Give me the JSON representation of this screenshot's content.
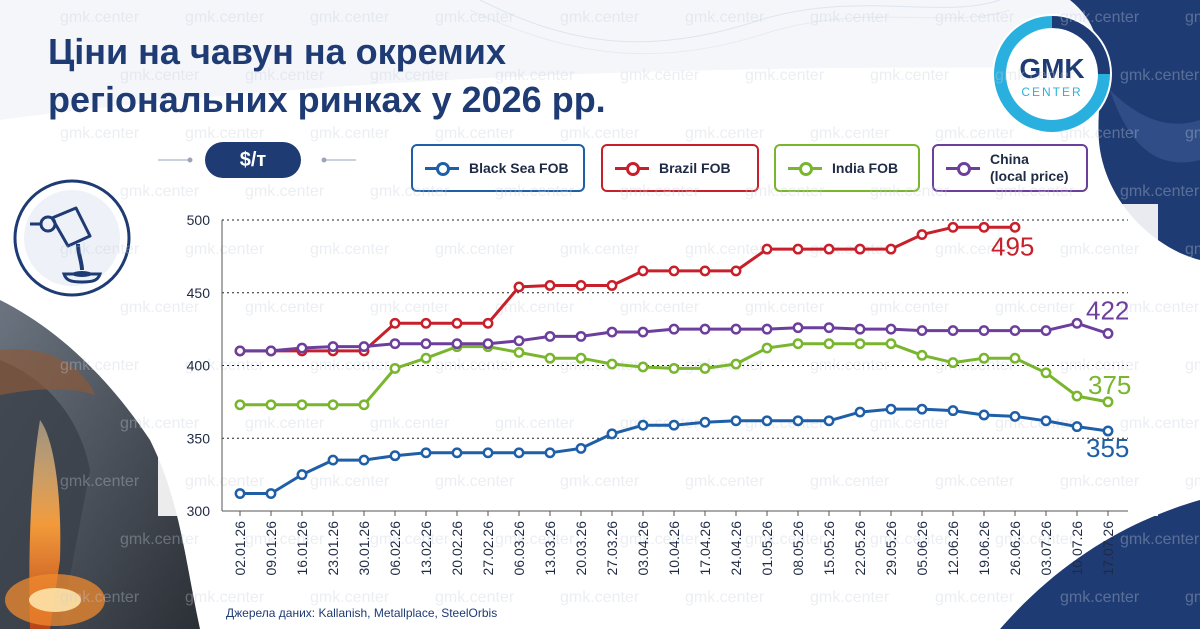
{
  "title": "Ціни на чавун на окремих регіональних ринках у 2026 рр.",
  "unit": "$/т",
  "logo": {
    "line1": "GMK",
    "line2": "CENTER"
  },
  "watermark": "gmk.center",
  "source": "Джерела даних: Kallanish, Metallplace, SteelOrbis",
  "colors": {
    "navy": "#1f3b73",
    "blackSea": "#1f5fa8",
    "brazil": "#c8202a",
    "india": "#7ab52e",
    "china": "#6d3f9c"
  },
  "legend": [
    {
      "label": "Black Sea FOB",
      "color": "#1f5fa8"
    },
    {
      "label": "Brazil FOB",
      "color": "#c8202a"
    },
    {
      "label": "India FOB",
      "color": "#7ab52e"
    },
    {
      "label": "China\n(local price)",
      "color": "#6d3f9c"
    }
  ],
  "chart_data": {
    "type": "line",
    "ylim": [
      300,
      500
    ],
    "yticks": [
      300,
      350,
      400,
      450,
      500
    ],
    "grid": "dotted horizontal",
    "x": [
      "02.01.26",
      "09.01.26",
      "16.01.26",
      "23.01.26",
      "30.01.26",
      "06.02.26",
      "13.02.26",
      "20.02.26",
      "27.02.26",
      "06.03.26",
      "13.03.26",
      "20.03.26",
      "27.03.26",
      "03.04.26",
      "10.04.26",
      "17.04.26",
      "24.04.26",
      "01.05.26",
      "08.05.26",
      "15.05.26",
      "22.05.26",
      "29.05.26",
      "05.06.26",
      "12.06.26",
      "19.06.26",
      "26.06.26",
      "03.07.26",
      "10.07.26",
      "17.07.26"
    ],
    "series": [
      {
        "name": "Black Sea FOB",
        "color": "#1f5fa8",
        "end_label": "355",
        "values": [
          312,
          312,
          325,
          335,
          335,
          338,
          340,
          340,
          340,
          340,
          340,
          343,
          353,
          359,
          359,
          361,
          362,
          362,
          362,
          362,
          368,
          370,
          370,
          369,
          366,
          365,
          362,
          358,
          355
        ]
      },
      {
        "name": "Brazil FOB",
        "color": "#c8202a",
        "end_label": "495",
        "values": [
          410,
          410,
          410,
          410,
          410,
          429,
          429,
          429,
          429,
          454,
          455,
          455,
          455,
          465,
          465,
          465,
          465,
          480,
          480,
          480,
          480,
          480,
          490,
          495,
          495,
          495,
          null,
          null,
          null
        ]
      },
      {
        "name": "India FOB",
        "color": "#7ab52e",
        "end_label": "375",
        "values": [
          373,
          373,
          373,
          373,
          373,
          398,
          405,
          413,
          413,
          409,
          405,
          405,
          401,
          399,
          398,
          398,
          401,
          412,
          415,
          415,
          415,
          415,
          407,
          402,
          405,
          405,
          395,
          379,
          375
        ]
      },
      {
        "name": "China (local price)",
        "color": "#6d3f9c",
        "end_label": "422",
        "values": [
          410,
          410,
          412,
          413,
          413,
          415,
          415,
          415,
          415,
          417,
          420,
          420,
          423,
          423,
          425,
          425,
          425,
          425,
          426,
          426,
          425,
          425,
          424,
          424,
          424,
          424,
          424,
          429,
          422
        ]
      }
    ]
  }
}
